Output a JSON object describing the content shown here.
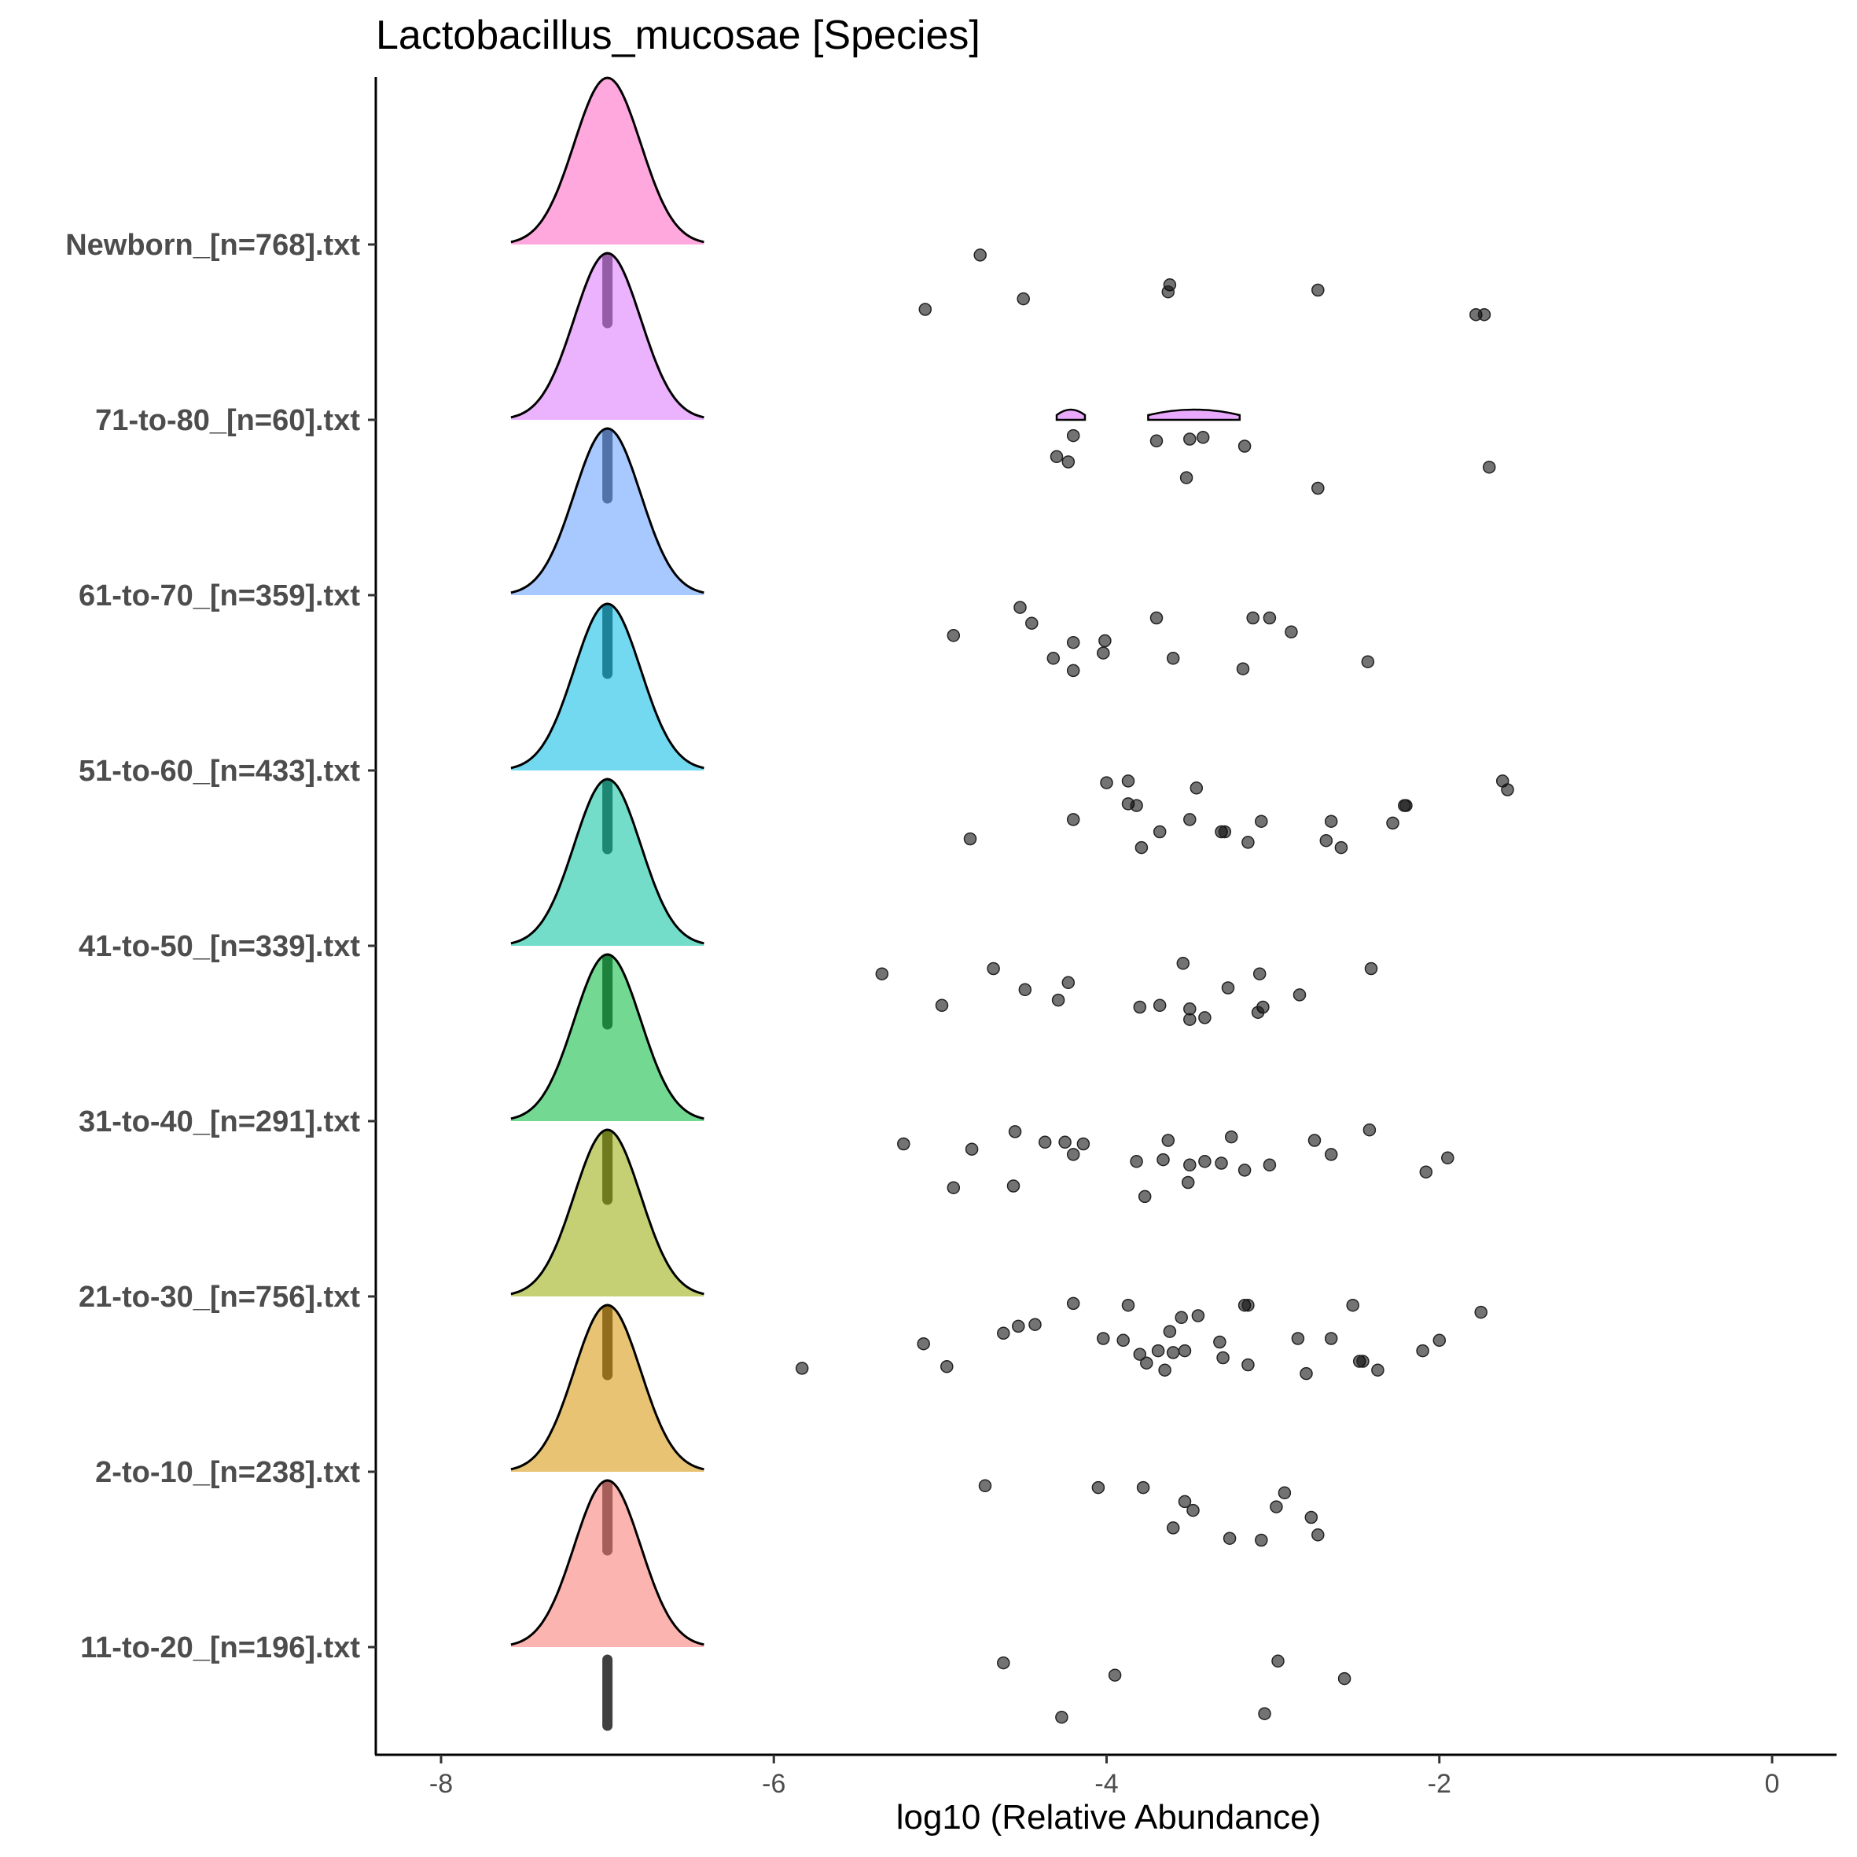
{
  "chart_data": {
    "type": "ridgeline",
    "title": "Lactobacillus_mucosae [Species]",
    "xlabel": "log10 (Relative Abundance)",
    "ylabel": "",
    "xlim": [
      -8.4,
      0.4
    ],
    "x_ticks": [
      -8,
      -6,
      -4,
      -2,
      0
    ],
    "x_tick_labels": [
      "-8",
      "-6",
      "-4",
      "-2",
      "0"
    ],
    "grid": false,
    "legend": "none",
    "baseline_value": -7,
    "categories": [
      "11-to-20_[n=196].txt",
      "2-to-10_[n=238].txt",
      "21-to-30_[n=756].txt",
      "31-to-40_[n=291].txt",
      "41-to-50_[n=339].txt",
      "51-to-60_[n=433].txt",
      "61-to-70_[n=359].txt",
      "71-to-80_[n=60].txt",
      "Newborn_[n=768].txt"
    ],
    "colors": [
      "#F8766D",
      "#D39200",
      "#93AA00",
      "#00BA38",
      "#00C19F",
      "#00B9E3",
      "#619CFF",
      "#DB72FB",
      "#FF61C3"
    ],
    "series": [
      {
        "name": "11-to-20_[n=196].txt",
        "points": [
          [
            -4.62,
            -0.09
          ],
          [
            -3.95,
            -0.16
          ],
          [
            -2.97,
            -0.08
          ],
          [
            -2.57,
            -0.18
          ],
          [
            -4.27,
            -0.4
          ],
          [
            -3.05,
            -0.38
          ]
        ]
      },
      {
        "name": "2-to-10_[n=238].txt",
        "points": [
          [
            -4.73,
            -0.08
          ],
          [
            -4.05,
            -0.09
          ],
          [
            -3.78,
            -0.09
          ],
          [
            -2.93,
            -0.12
          ],
          [
            -3.53,
            -0.17
          ],
          [
            -3.48,
            -0.22
          ],
          [
            -2.98,
            -0.2
          ],
          [
            -2.77,
            -0.26
          ],
          [
            -3.6,
            -0.32
          ],
          [
            -3.26,
            -0.38
          ],
          [
            -3.07,
            -0.39
          ],
          [
            -2.73,
            -0.36
          ]
        ]
      },
      {
        "name": "21-to-30_[n=756].txt",
        "points": [
          [
            -4.2,
            -0.04
          ],
          [
            -3.87,
            -0.05
          ],
          [
            -3.17,
            -0.05
          ],
          [
            -3.15,
            -0.05
          ],
          [
            -2.52,
            -0.05
          ],
          [
            -1.75,
            -0.09
          ],
          [
            -3.55,
            -0.12
          ],
          [
            -3.45,
            -0.11
          ],
          [
            -4.53,
            -0.17
          ],
          [
            -4.43,
            -0.16
          ],
          [
            -4.62,
            -0.21
          ],
          [
            -5.1,
            -0.27
          ],
          [
            -4.02,
            -0.24
          ],
          [
            -3.9,
            -0.25
          ],
          [
            -3.62,
            -0.2
          ],
          [
            -3.32,
            -0.26
          ],
          [
            -2.85,
            -0.24
          ],
          [
            -2.65,
            -0.24
          ],
          [
            -2.0,
            -0.25
          ],
          [
            -2.1,
            -0.31
          ],
          [
            -3.8,
            -0.33
          ],
          [
            -3.69,
            -0.31
          ],
          [
            -3.6,
            -0.32
          ],
          [
            -3.53,
            -0.31
          ],
          [
            -3.3,
            -0.35
          ],
          [
            -2.48,
            -0.37
          ],
          [
            -2.46,
            -0.37
          ],
          [
            -2.37,
            -0.42
          ],
          [
            -3.76,
            -0.38
          ],
          [
            -3.65,
            -0.42
          ],
          [
            -3.15,
            -0.39
          ],
          [
            -2.8,
            -0.44
          ],
          [
            -5.83,
            -0.41
          ],
          [
            -4.96,
            -0.4
          ]
        ]
      },
      {
        "name": "31-to-40_[n=291].txt",
        "points": [
          [
            -4.55,
            -0.06
          ],
          [
            -2.42,
            -0.05
          ],
          [
            -3.25,
            -0.09
          ],
          [
            -2.75,
            -0.11
          ],
          [
            -5.22,
            -0.13
          ],
          [
            -4.37,
            -0.12
          ],
          [
            -4.25,
            -0.12
          ],
          [
            -4.14,
            -0.13
          ],
          [
            -3.63,
            -0.11
          ],
          [
            -4.81,
            -0.16
          ],
          [
            -4.2,
            -0.19
          ],
          [
            -2.65,
            -0.19
          ],
          [
            -1.95,
            -0.21
          ],
          [
            -3.82,
            -0.23
          ],
          [
            -3.66,
            -0.22
          ],
          [
            -3.5,
            -0.25
          ],
          [
            -3.41,
            -0.23
          ],
          [
            -3.31,
            -0.24
          ],
          [
            -3.02,
            -0.25
          ],
          [
            -3.17,
            -0.28
          ],
          [
            -2.08,
            -0.29
          ],
          [
            -4.92,
            -0.38
          ],
          [
            -4.56,
            -0.37
          ],
          [
            -3.77,
            -0.43
          ],
          [
            -3.51,
            -0.35
          ]
        ]
      },
      {
        "name": "41-to-50_[n=339].txt",
        "points": [
          [
            -3.54,
            -0.1
          ],
          [
            -2.41,
            -0.13
          ],
          [
            -4.68,
            -0.13
          ],
          [
            -3.08,
            -0.16
          ],
          [
            -5.35,
            -0.16
          ],
          [
            -4.23,
            -0.21
          ],
          [
            -4.49,
            -0.25
          ],
          [
            -3.27,
            -0.24
          ],
          [
            -4.29,
            -0.31
          ],
          [
            -2.84,
            -0.28
          ],
          [
            -4.99,
            -0.34
          ],
          [
            -3.8,
            -0.35
          ],
          [
            -3.68,
            -0.34
          ],
          [
            -3.5,
            -0.36
          ],
          [
            -3.06,
            -0.35
          ],
          [
            -3.09,
            -0.38
          ],
          [
            -3.5,
            -0.42
          ],
          [
            -3.41,
            -0.41
          ]
        ]
      },
      {
        "name": "51-to-60_[n=433].txt",
        "points": [
          [
            -4.0,
            -0.07
          ],
          [
            -3.87,
            -0.06
          ],
          [
            -1.62,
            -0.06
          ],
          [
            -1.59,
            -0.11
          ],
          [
            -3.46,
            -0.1
          ],
          [
            -2.21,
            -0.2
          ],
          [
            -2.2,
            -0.2
          ],
          [
            -3.87,
            -0.19
          ],
          [
            -3.82,
            -0.2
          ],
          [
            -4.2,
            -0.28
          ],
          [
            -3.5,
            -0.28
          ],
          [
            -3.07,
            -0.29
          ],
          [
            -2.65,
            -0.29
          ],
          [
            -2.28,
            -0.3
          ],
          [
            -3.68,
            -0.35
          ],
          [
            -3.31,
            -0.35
          ],
          [
            -3.29,
            -0.35
          ],
          [
            -4.82,
            -0.39
          ],
          [
            -3.79,
            -0.44
          ],
          [
            -3.15,
            -0.41
          ],
          [
            -2.68,
            -0.4
          ],
          [
            -2.59,
            -0.44
          ]
        ]
      },
      {
        "name": "61-to-70_[n=359].txt",
        "points": [
          [
            -4.52,
            -0.07
          ],
          [
            -4.45,
            -0.16
          ],
          [
            -3.7,
            -0.13
          ],
          [
            -3.12,
            -0.13
          ],
          [
            -3.02,
            -0.13
          ],
          [
            -2.89,
            -0.21
          ],
          [
            -4.92,
            -0.23
          ],
          [
            -4.2,
            -0.27
          ],
          [
            -4.01,
            -0.26
          ],
          [
            -4.02,
            -0.33
          ],
          [
            -4.32,
            -0.36
          ],
          [
            -3.6,
            -0.36
          ],
          [
            -4.2,
            -0.43
          ],
          [
            -3.18,
            -0.42
          ],
          [
            -2.43,
            -0.38
          ]
        ]
      },
      {
        "name": "71-to-80_[n=60].txt",
        "points": [
          [
            -4.2,
            -0.09
          ],
          [
            -3.7,
            -0.12
          ],
          [
            -3.5,
            -0.11
          ],
          [
            -3.42,
            -0.1
          ],
          [
            -3.17,
            -0.15
          ],
          [
            -4.3,
            -0.21
          ],
          [
            -4.23,
            -0.24
          ],
          [
            -1.7,
            -0.27
          ],
          [
            -3.52,
            -0.33
          ],
          [
            -2.73,
            -0.39
          ]
        ]
      },
      {
        "name": "Newborn_[n=768].txt",
        "points": [
          [
            -4.76,
            -0.06
          ],
          [
            -3.62,
            -0.23
          ],
          [
            -3.63,
            -0.27
          ],
          [
            -2.73,
            -0.26
          ],
          [
            -4.5,
            -0.31
          ],
          [
            -5.09,
            -0.37
          ],
          [
            -1.78,
            -0.4
          ],
          [
            -1.73,
            -0.4
          ]
        ]
      }
    ],
    "minor_densities": [
      {
        "name": "71-to-80_[n=60].txt",
        "segments": [
          [
            -4.3,
            -4.13
          ],
          [
            -3.75,
            -3.2
          ]
        ]
      }
    ]
  }
}
